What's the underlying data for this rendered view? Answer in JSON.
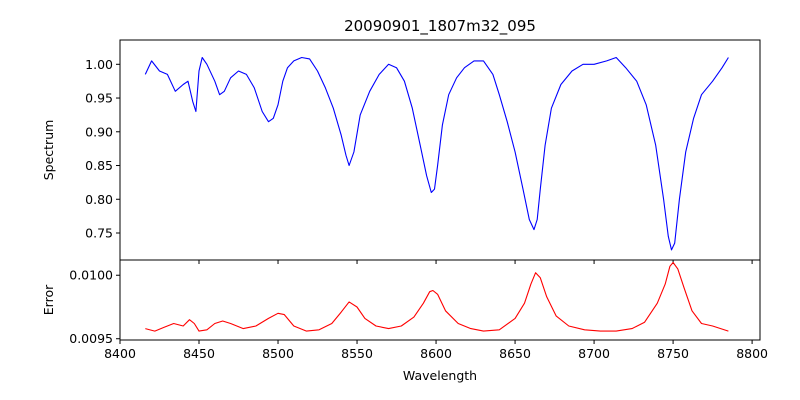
{
  "chart_data": [
    {
      "type": "line",
      "title": "20090901_1807m32_095",
      "xlabel": "",
      "ylabel": "Spectrum",
      "xlim": [
        8400,
        8805
      ],
      "ylim": [
        0.71,
        1.036
      ],
      "x_ticks": [
        8400,
        8450,
        8500,
        8550,
        8600,
        8650,
        8700,
        8750,
        8800
      ],
      "y_ticks": [
        0.75,
        0.8,
        0.85,
        0.9,
        0.95,
        1.0
      ],
      "y_tick_labels": [
        "0.75",
        "0.80",
        "0.85",
        "0.90",
        "0.95",
        "1.00"
      ],
      "grid": false,
      "series": [
        {
          "color": "#0000ff",
          "x": [
            8416,
            8420,
            8425,
            8430,
            8435,
            8440,
            8443,
            8446,
            8448,
            8450,
            8452,
            8455,
            8460,
            8463,
            8466,
            8470,
            8475,
            8480,
            8485,
            8490,
            8494,
            8497,
            8500,
            8503,
            8506,
            8510,
            8515,
            8520,
            8525,
            8530,
            8535,
            8540,
            8543,
            8545,
            8548,
            8552,
            8558,
            8564,
            8570,
            8575,
            8580,
            8585,
            8590,
            8594,
            8597,
            8599,
            8601,
            8604,
            8608,
            8613,
            8618,
            8624,
            8630,
            8636,
            8640,
            8645,
            8650,
            8655,
            8659,
            8662,
            8664,
            8666,
            8669,
            8673,
            8679,
            8686,
            8693,
            8700,
            8708,
            8714,
            8720,
            8727,
            8733,
            8739,
            8744,
            8747,
            8749,
            8751,
            8754,
            8758,
            8763,
            8768,
            8775,
            8781,
            8785
          ],
          "y": [
            0.985,
            1.005,
            0.99,
            0.985,
            0.96,
            0.97,
            0.975,
            0.945,
            0.93,
            0.99,
            1.01,
            1.0,
            0.975,
            0.955,
            0.96,
            0.98,
            0.99,
            0.985,
            0.965,
            0.93,
            0.915,
            0.92,
            0.94,
            0.975,
            0.995,
            1.005,
            1.01,
            1.008,
            0.99,
            0.965,
            0.935,
            0.895,
            0.865,
            0.85,
            0.87,
            0.925,
            0.96,
            0.985,
            1.0,
            0.995,
            0.975,
            0.935,
            0.88,
            0.835,
            0.81,
            0.815,
            0.85,
            0.91,
            0.955,
            0.98,
            0.995,
            1.005,
            1.005,
            0.985,
            0.955,
            0.915,
            0.87,
            0.815,
            0.77,
            0.755,
            0.77,
            0.815,
            0.88,
            0.935,
            0.97,
            0.99,
            1.0,
            1.0,
            1.005,
            1.01,
            0.995,
            0.975,
            0.94,
            0.88,
            0.8,
            0.745,
            0.725,
            0.735,
            0.8,
            0.87,
            0.92,
            0.955,
            0.975,
            0.995,
            1.01
          ]
        }
      ]
    },
    {
      "type": "line",
      "title": "",
      "xlabel": "Wavelength",
      "ylabel": "Error",
      "xlim": [
        8400,
        8805
      ],
      "ylim": [
        0.00949,
        0.01012
      ],
      "x_ticks": [
        8400,
        8450,
        8500,
        8550,
        8600,
        8650,
        8700,
        8750,
        8800
      ],
      "x_tick_labels": [
        "8400",
        "8450",
        "8500",
        "8550",
        "8600",
        "8650",
        "8700",
        "8750",
        "8800"
      ],
      "y_ticks": [
        0.0095,
        0.01
      ],
      "y_tick_labels": [
        "0.0095",
        "0.0100"
      ],
      "grid": false,
      "series": [
        {
          "color": "#ff0000",
          "x": [
            8416,
            8422,
            8428,
            8434,
            8440,
            8444,
            8447,
            8450,
            8455,
            8460,
            8465,
            8470,
            8478,
            8486,
            8494,
            8500,
            8504,
            8510,
            8518,
            8526,
            8534,
            8540,
            8545,
            8550,
            8555,
            8562,
            8570,
            8578,
            8586,
            8592,
            8596,
            8598,
            8601,
            8606,
            8614,
            8622,
            8630,
            8640,
            8650,
            8656,
            8660,
            8663,
            8666,
            8670,
            8676,
            8684,
            8694,
            8704,
            8714,
            8724,
            8732,
            8740,
            8745,
            8748,
            8750,
            8753,
            8757,
            8762,
            8768,
            8775,
            8785
          ],
          "y": [
            0.00958,
            0.00956,
            0.00959,
            0.00962,
            0.0096,
            0.00965,
            0.00962,
            0.00956,
            0.00957,
            0.00962,
            0.00964,
            0.00962,
            0.00958,
            0.0096,
            0.00966,
            0.0097,
            0.00969,
            0.0096,
            0.00956,
            0.00957,
            0.00962,
            0.00971,
            0.00979,
            0.00975,
            0.00966,
            0.0096,
            0.00958,
            0.0096,
            0.00967,
            0.00978,
            0.00987,
            0.00988,
            0.00985,
            0.00972,
            0.00962,
            0.00958,
            0.00956,
            0.00957,
            0.00966,
            0.00978,
            0.00993,
            0.01002,
            0.00998,
            0.00983,
            0.00968,
            0.0096,
            0.00957,
            0.00956,
            0.00956,
            0.00958,
            0.00963,
            0.00978,
            0.00993,
            0.01007,
            0.0101,
            0.01005,
            0.0099,
            0.00972,
            0.00962,
            0.0096,
            0.00956
          ]
        }
      ]
    }
  ]
}
